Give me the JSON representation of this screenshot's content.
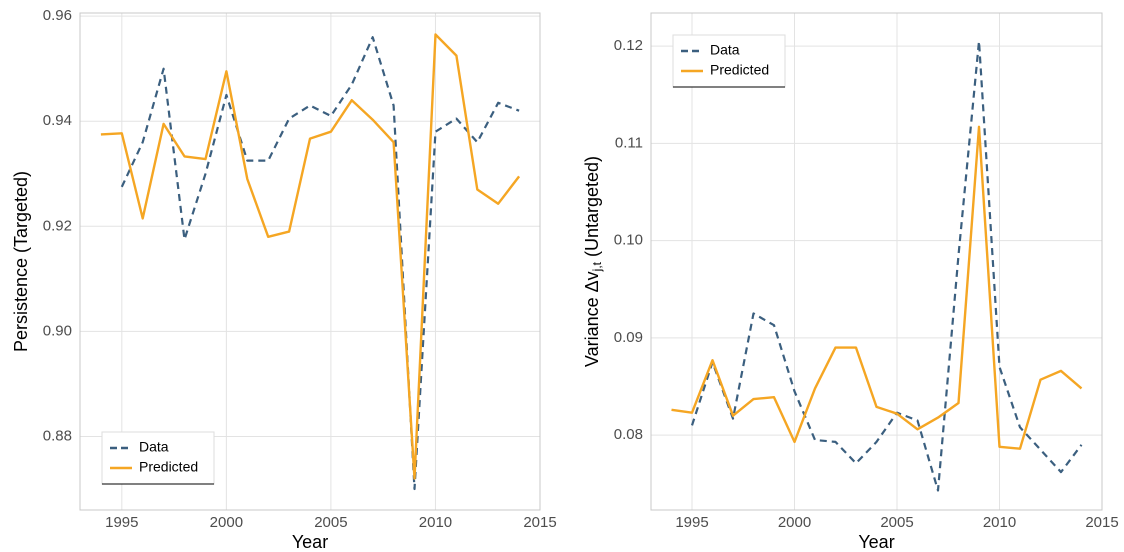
{
  "chart_data": [
    {
      "type": "line",
      "x_label": "Year",
      "y_label": "Persistence (Targeted)",
      "x": [
        1994,
        1995,
        1996,
        1997,
        1998,
        1999,
        2000,
        2001,
        2002,
        2003,
        2004,
        2005,
        2006,
        2007,
        2008,
        2009,
        2010,
        2011,
        2012,
        2013,
        2014
      ],
      "series": [
        {
          "name": "Data",
          "color": "#3b5f7f",
          "dash": true,
          "values": [
            null,
            0.9275,
            0.936,
            0.95,
            0.9175,
            0.93,
            0.945,
            0.9325,
            0.9325,
            0.9405,
            0.943,
            0.941,
            0.947,
            0.956,
            0.943,
            0.87,
            0.938,
            0.9405,
            0.936,
            0.9435,
            0.942
          ]
        },
        {
          "name": "Predicted",
          "color": "#f5a623",
          "dash": false,
          "values": [
            0.9375,
            0.9377,
            0.9215,
            0.9395,
            0.9333,
            0.9328,
            0.9495,
            0.929,
            0.918,
            0.919,
            0.9367,
            0.938,
            0.944,
            0.9403,
            0.936,
            0.872,
            0.9565,
            0.9525,
            0.927,
            0.9243,
            0.9295
          ]
        }
      ],
      "xlim": [
        1993,
        2015
      ],
      "xticks": [
        1995,
        2000,
        2005,
        2010,
        2015
      ],
      "ylim": [
        0.866,
        0.9606
      ],
      "yticks": [
        {
          "value": 0.88,
          "label": "0.88"
        },
        {
          "value": 0.9,
          "label": "0.90"
        },
        {
          "value": 0.92,
          "label": "0.92"
        },
        {
          "value": 0.94,
          "label": "0.94"
        },
        {
          "value": 0.96,
          "label": "0.96"
        }
      ],
      "grid": true,
      "legend": "bottom-left"
    },
    {
      "type": "line",
      "x_label": "Year",
      "y_label": "Variance Δv",
      "y_label_subscript": "j,t",
      "y_label_suffix": "(Untargeted)",
      "x": [
        1994,
        1995,
        1996,
        1997,
        1998,
        1999,
        2000,
        2001,
        2002,
        2003,
        2004,
        2005,
        2006,
        2007,
        2008,
        2009,
        2010,
        2011,
        2012,
        2013,
        2014
      ],
      "series": [
        {
          "name": "Data",
          "color": "#3b5f7f",
          "dash": true,
          "values": [
            null,
            0.081,
            0.0875,
            0.0817,
            0.0925,
            0.0913,
            0.0845,
            0.0795,
            0.0793,
            0.0771,
            0.0793,
            0.0823,
            0.0815,
            0.0743,
            0.0985,
            0.1205,
            0.087,
            0.0808,
            0.0785,
            0.0762,
            0.079
          ]
        },
        {
          "name": "Predicted",
          "color": "#f5a623",
          "dash": false,
          "values": [
            0.0826,
            0.0823,
            0.0877,
            0.082,
            0.0837,
            0.0839,
            0.0793,
            0.0848,
            0.089,
            0.089,
            0.0829,
            0.0822,
            0.0806,
            0.0818,
            0.0833,
            0.1117,
            0.0788,
            0.0786,
            0.0857,
            0.0866,
            0.0848
          ]
        }
      ],
      "xlim": [
        1993,
        2015
      ],
      "xticks": [
        1995,
        2000,
        2005,
        2010,
        2015
      ],
      "ylim": [
        0.0723,
        0.1234
      ],
      "yticks": [
        0.08,
        0.09,
        {
          "value": 0.1,
          "label": "0.10"
        },
        0.11,
        0.12
      ],
      "grid": true,
      "legend": "top-left"
    }
  ]
}
